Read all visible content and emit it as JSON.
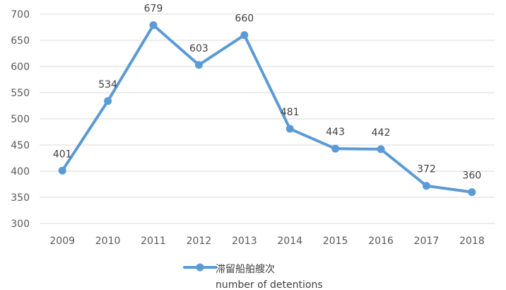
{
  "chart_data": {
    "type": "line",
    "categories": [
      "2009",
      "2010",
      "2011",
      "2012",
      "2013",
      "2014",
      "2015",
      "2016",
      "2017",
      "2018"
    ],
    "series": [
      {
        "name": "滞留船舶艘次",
        "values": [
          401,
          534,
          679,
          603,
          660,
          481,
          443,
          442,
          372,
          360
        ],
        "color": "#5B9BD5"
      }
    ],
    "ylim": [
      300,
      700
    ],
    "yticks": [
      300,
      350,
      400,
      450,
      500,
      550,
      600,
      650,
      700
    ],
    "grid": true,
    "data_labels": true,
    "legend": {
      "placement": "bottom",
      "lines": [
        "滞留船舶艘次",
        "number of detentions"
      ]
    }
  }
}
